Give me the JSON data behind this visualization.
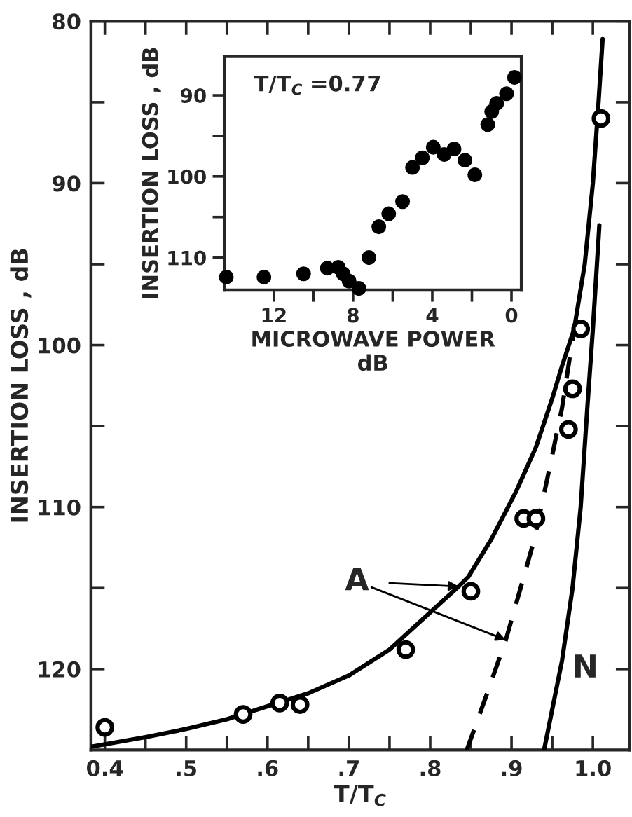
{
  "chart_data": [
    {
      "type": "line",
      "xlabel": "T/T$_{C}$",
      "ylabel": "INSERTION LOSS , dB",
      "xlim": [
        0.383,
        1.045
      ],
      "ylim": [
        125,
        80
      ],
      "xticks": [
        {
          "value": 0.4,
          "label": "0.4"
        },
        {
          "value": 0.45,
          "label": null
        },
        {
          "value": 0.5,
          "label": ".5"
        },
        {
          "value": 0.55,
          "label": null
        },
        {
          "value": 0.6,
          "label": ".6"
        },
        {
          "value": 0.65,
          "label": null
        },
        {
          "value": 0.7,
          "label": ".7"
        },
        {
          "value": 0.75,
          "label": null
        },
        {
          "value": 0.8,
          "label": ".8"
        },
        {
          "value": 0.85,
          "label": null
        },
        {
          "value": 0.9,
          "label": ".9"
        },
        {
          "value": 0.95,
          "label": null
        },
        {
          "value": 1.0,
          "label": "1.0"
        }
      ],
      "yticks": [
        80,
        {
          "value": 85,
          "label": null
        },
        90,
        {
          "value": 95,
          "label": null
        },
        100,
        {
          "value": 105,
          "label": null
        },
        110,
        {
          "value": 115,
          "label": null
        },
        120
      ],
      "grid": false,
      "legend": false,
      "series": [
        {
          "type": "scatter",
          "marker": "circle",
          "color": "#000000",
          "x": [
            0.4,
            0.57,
            0.615,
            0.64,
            0.77,
            0.85,
            0.915,
            0.93,
            0.97,
            0.975,
            0.985,
            1.01
          ],
          "values": [
            123.6,
            122.8,
            122.1,
            122.2,
            118.8,
            115.2,
            110.7,
            110.7,
            105.2,
            102.7,
            99.0,
            86.0
          ]
        },
        {
          "type": "line",
          "marker": "none",
          "color": "#000000",
          "line_style": "solid",
          "x": [
            0.383,
            0.45,
            0.5,
            0.55,
            0.6,
            0.65,
            0.7,
            0.75,
            0.8,
            0.835,
            0.847,
            0.875,
            0.905,
            0.93,
            0.95,
            0.962,
            0.977,
            0.99,
            1.0,
            1.007,
            1.012
          ],
          "values": [
            124.8,
            124.2,
            123.7,
            123.1,
            122.3,
            121.5,
            120.4,
            118.8,
            116.5,
            114.9,
            114.3,
            112.0,
            109.1,
            106.3,
            103.3,
            101.3,
            99.0,
            95,
            90.0,
            85,
            81.1
          ]
        },
        {
          "type": "line",
          "marker": "none",
          "color": "#000000",
          "line_style": "dashed",
          "x": [
            0.845,
            0.87,
            0.893,
            0.91,
            0.928,
            0.945,
            0.962,
            0.977
          ],
          "values": [
            125,
            121.5,
            118.2,
            115.2,
            112.0,
            108,
            103.9,
            99.0
          ]
        },
        {
          "type": "line",
          "name": "N",
          "marker": "none",
          "color": "#000000",
          "line_style": "solid",
          "x": [
            0.94,
            0.95,
            0.962,
            0.975,
            0.985,
            0.993,
            1.0,
            1.005,
            1.008
          ],
          "values": [
            125,
            122.5,
            119.5,
            115,
            110,
            104,
            99,
            95,
            92.6
          ]
        }
      ],
      "annotations": [
        {
          "text": "A",
          "x": 0.835,
          "y": 114.9
        }
      ]
    },
    {
      "type": "scatter",
      "xlabel": "MICROWAVE POWER\ndB",
      "ylabel": "INSERTION LOSS , dB",
      "xlim": [
        14.5,
        -0.5
      ],
      "ylim": [
        114,
        85.2
      ],
      "xticks": [
        12,
        {
          "value": 10,
          "label": null
        },
        8,
        {
          "value": 6,
          "label": null
        },
        4,
        {
          "value": 2,
          "label": null
        },
        0
      ],
      "yticks": [
        90,
        {
          "value": 95,
          "label": null
        },
        100,
        {
          "value": 105,
          "label": null
        },
        110
      ],
      "marker": "circle",
      "grid": false,
      "legend": false,
      "series": [
        {
          "color": "#000000",
          "x": [
            14.4,
            12.5,
            10.5,
            9.3,
            8.75,
            8.5,
            8.2,
            7.7,
            7.2,
            6.7,
            6.2,
            5.5,
            5.0,
            4.5,
            3.95,
            3.4,
            2.9,
            2.35,
            1.85,
            1.2,
            1.0,
            0.75,
            0.25,
            -0.15
          ],
          "values": [
            112.4,
            112.4,
            112.0,
            111.3,
            111.2,
            112.0,
            112.9,
            113.8,
            110.0,
            106.2,
            104.6,
            103.1,
            98.9,
            97.7,
            96.4,
            97.3,
            96.6,
            98.0,
            99.8,
            93.6,
            92.0,
            91.0,
            89.8,
            87.8
          ]
        }
      ],
      "annotations": [
        "T/T$_{C}$ =0.77"
      ]
    }
  ]
}
